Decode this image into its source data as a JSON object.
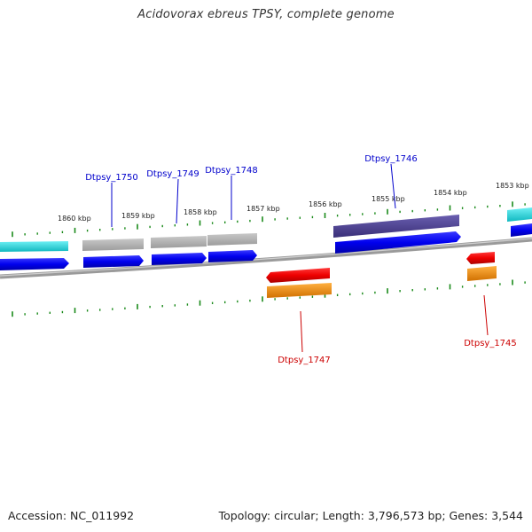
{
  "title": "Acidovorax ebreus TPSY, complete genome",
  "footer": {
    "accession": "Accession: NC_011992",
    "summary": "Topology: circular; Length: 3,796,573 bp; Genes: 3,544"
  },
  "scale_labels": [
    "1860 kbp",
    "1859 kbp",
    "1858 kbp",
    "1857 kbp",
    "1856 kbp",
    "1855 kbp",
    "1854 kbp",
    "1853 kbp"
  ],
  "genes": [
    {
      "id": "Dtpsy_1750",
      "strand": "forward"
    },
    {
      "id": "Dtpsy_1749",
      "strand": "forward"
    },
    {
      "id": "Dtpsy_1748",
      "strand": "forward"
    },
    {
      "id": "Dtpsy_1746",
      "strand": "forward"
    },
    {
      "id": "Dtpsy_1747",
      "strand": "reverse"
    },
    {
      "id": "Dtpsy_1745",
      "strand": "reverse"
    }
  ],
  "colors": {
    "forward_label": "#0000cc",
    "reverse_label": "#cc0000",
    "cds_forward": "#0000ee",
    "cds_reverse": "#ee0000",
    "gene_gray": "#aaaaaa",
    "gene_purple": "#4b3f8a",
    "gene_cyan": "#22d4dc",
    "gene_orange": "#f08a00",
    "tick": "#1a8a1a",
    "backbone": "#7f7f7f"
  }
}
